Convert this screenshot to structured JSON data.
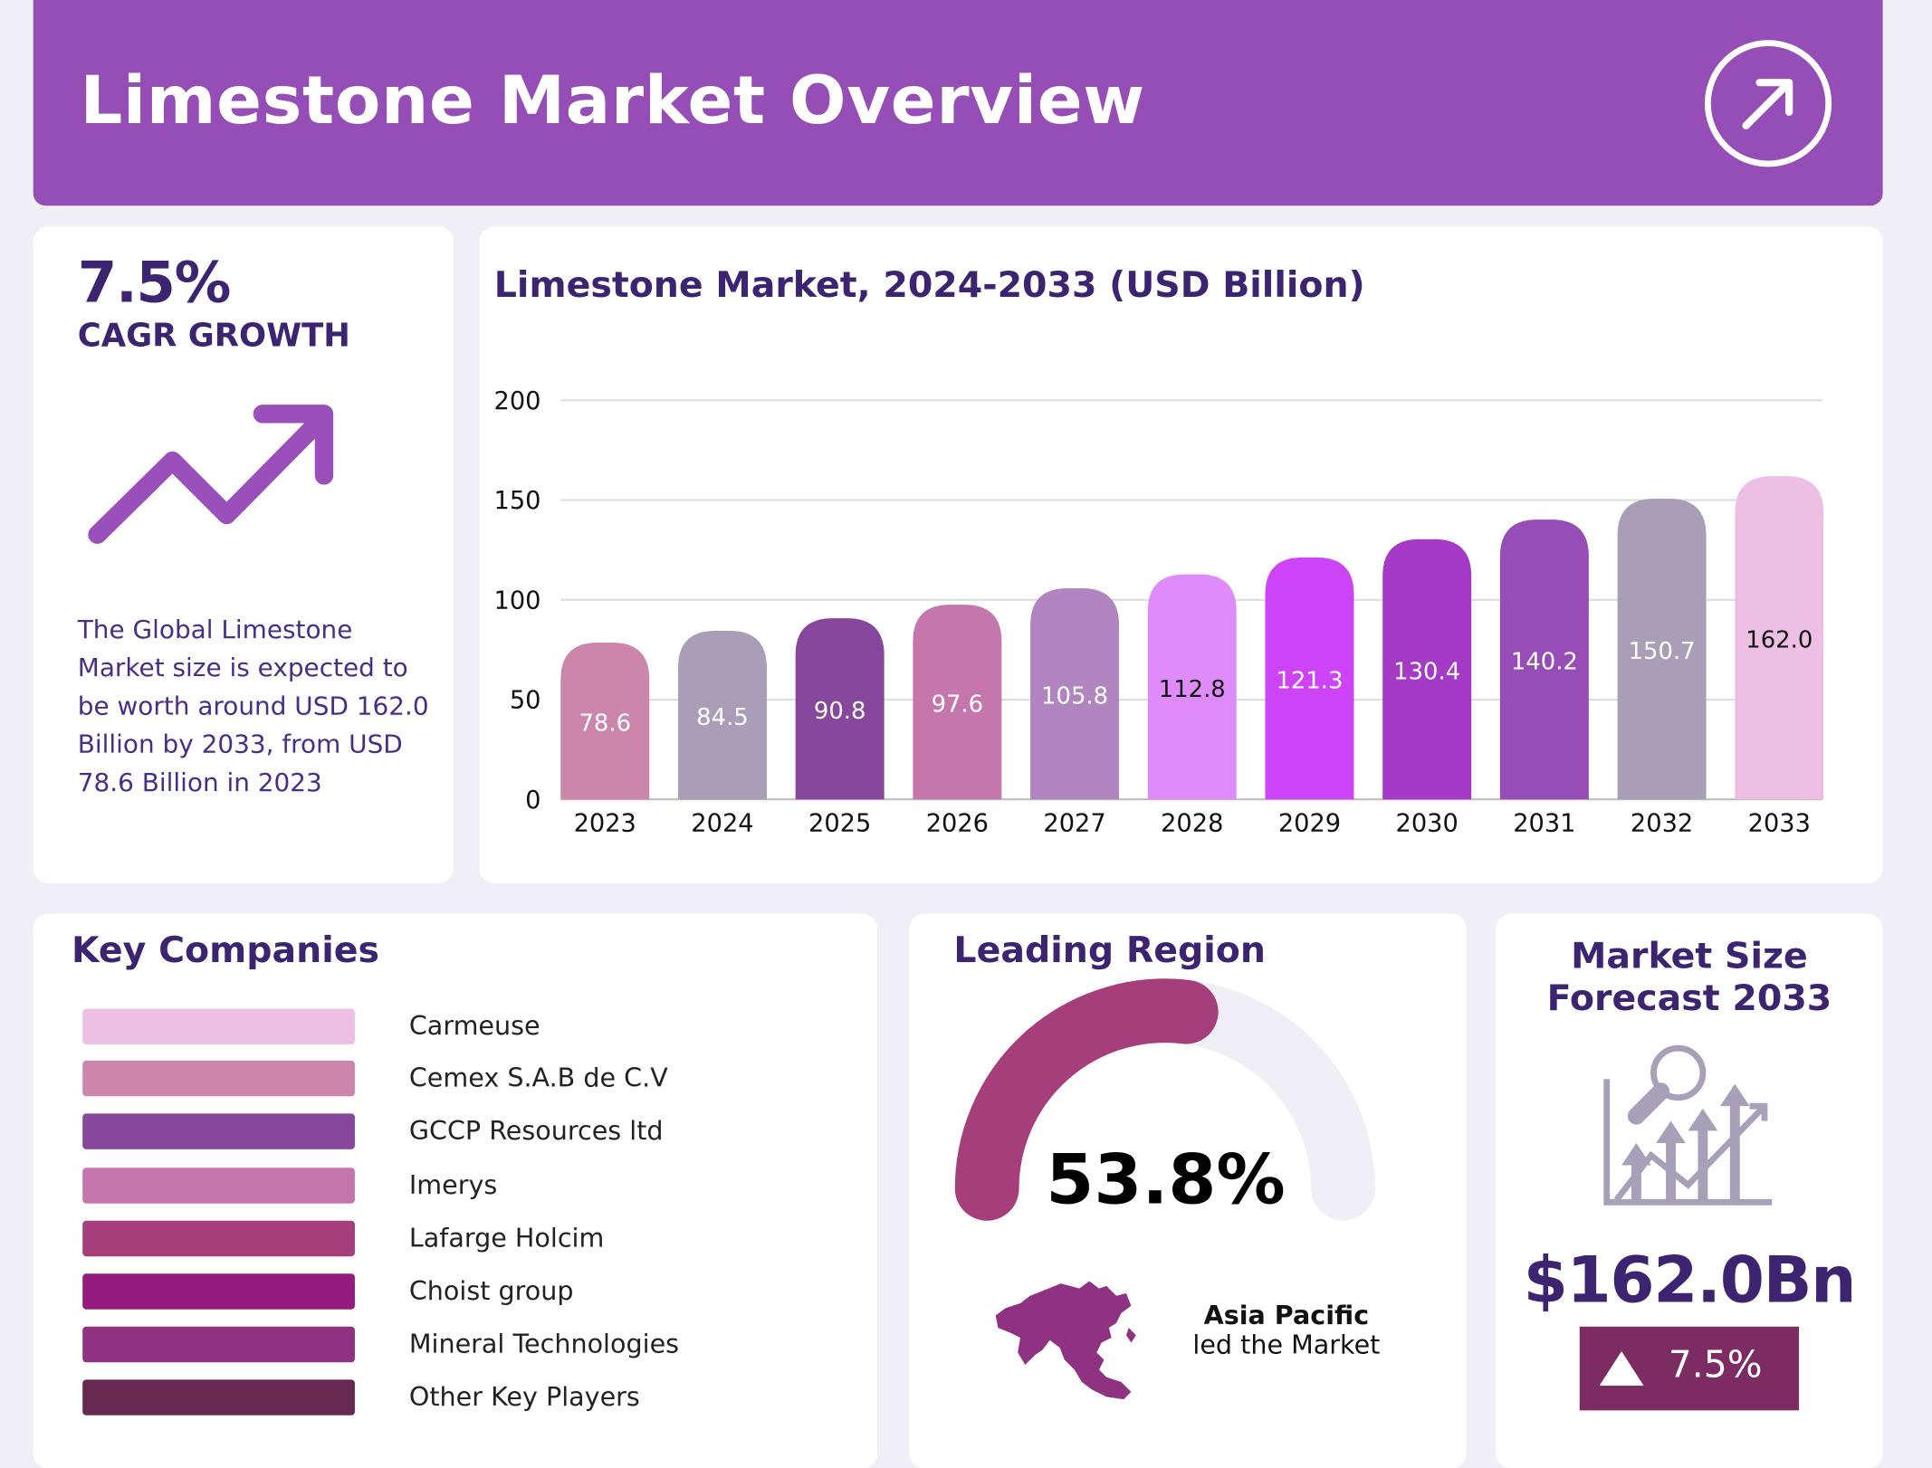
{
  "header": {
    "title": "Limestone Market Overview",
    "icon": "arrow-up-right-circle-icon",
    "color": "#964eb7"
  },
  "cagr": {
    "value": "7.5%",
    "label": "CAGR GROWTH",
    "icon": "trend-up-arrow-icon",
    "description": "The Global Limestone Market size is expected to be worth around USD 162.0 Billion by 2033, from USD 78.6 Billion in 2023"
  },
  "chart_data": {
    "type": "bar",
    "title": "Limestone Market, 2024-2033 (USD Billion)",
    "categories": [
      "2023",
      "2024",
      "2025",
      "2026",
      "2027",
      "2028",
      "2029",
      "2030",
      "2031",
      "2032",
      "2033"
    ],
    "values": [
      78.6,
      84.5,
      90.8,
      97.6,
      105.8,
      112.8,
      121.3,
      130.4,
      140.2,
      150.7,
      162.0
    ],
    "labels": [
      "78.6",
      "84.5",
      "90.8",
      "97.6",
      "105.8",
      "112.8",
      "121.3",
      "130.4",
      "140.2",
      "150.7",
      "162.0"
    ],
    "colors": [
      "#cc86ab",
      "#a89eb8",
      "#87479c",
      "#c577ad",
      "#b085c0",
      "#e08bfb",
      "#cc44f5",
      "#a53ac7",
      "#964db5",
      "#a89eb8",
      "#edbfe5"
    ],
    "label_colors": [
      "#ffffff",
      "#ffffff",
      "#ffffff",
      "#ffffff",
      "#ffffff",
      "#111111",
      "#ffffff",
      "#ffffff",
      "#ffffff",
      "#ffffff",
      "#111111"
    ],
    "yticks": [
      "0",
      "50",
      "100",
      "150",
      "200"
    ],
    "ylim": [
      0,
      200
    ],
    "grid": true,
    "xlabel": "",
    "ylabel": ""
  },
  "companies": {
    "title": "Key Companies",
    "items": [
      {
        "name": "Carmeuse",
        "color": "#edbfe5"
      },
      {
        "name": "Cemex S.A.B de C.V",
        "color": "#cc86ab"
      },
      {
        "name": "GCCP Resources ltd",
        "color": "#87479c"
      },
      {
        "name": "Imerys",
        "color": "#c577ad"
      },
      {
        "name": "Lafarge Holcim",
        "color": "#a53e7a"
      },
      {
        "name": "Choist group",
        "color": "#951c7f"
      },
      {
        "name": "Mineral Technologies",
        "color": "#8f3282"
      },
      {
        "name": "Other Key Players",
        "color": "#66294f"
      }
    ]
  },
  "region": {
    "title": "Leading Region",
    "share": 53.8,
    "share_label": "53.8%",
    "name": "Asia Pacific",
    "subtitle": "led the Market",
    "gauge_color": "#a53e7a",
    "track_color": "#f0eff5",
    "icon": "asia-map-icon"
  },
  "forecast": {
    "title_line1": "Market Size",
    "title_line2": "Forecast 2033",
    "value": "$162.0Bn",
    "growth": "7.5%",
    "badge_color": "#7d2b63",
    "icon": "growth-chart-magnifier-icon"
  }
}
